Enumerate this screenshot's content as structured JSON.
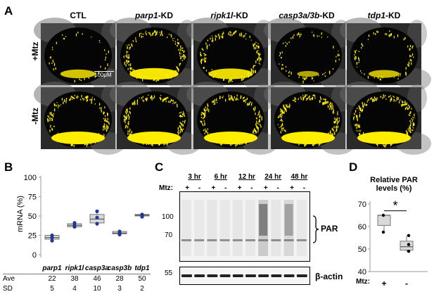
{
  "panel_a": {
    "letter": "A",
    "columns": [
      {
        "gene": "CTL",
        "suffix": "",
        "italic": false
      },
      {
        "gene": "parp1",
        "suffix": "-KD",
        "italic": true
      },
      {
        "gene": "ripk1l",
        "suffix": "-KD",
        "italic": true
      },
      {
        "gene": "casp3a/3b",
        "suffix": "-KD",
        "italic": true
      },
      {
        "gene": "tdp1",
        "suffix": "-KD",
        "italic": true
      }
    ],
    "rows": [
      "+Mtz",
      "-Mtz"
    ],
    "scale_bar": "100μM",
    "colors": {
      "signal": "#ffee00",
      "background": "#050505",
      "tissue": "#6a6a6a"
    }
  },
  "panel_b": {
    "letter": "B",
    "ylabel": "mRNA (%)",
    "yticks": [
      "100",
      "75",
      "50",
      "25",
      "0"
    ],
    "table": {
      "genes": [
        "parp1",
        "ripk1l",
        "casp3a",
        "casp3b",
        "tdp1"
      ],
      "ave_label": "Ave",
      "sd_label": "SD",
      "ave": [
        "22",
        "38",
        "46",
        "28",
        "50"
      ],
      "sd": [
        "5",
        "4",
        "10",
        "3",
        "2"
      ]
    },
    "chart_data": {
      "type": "box",
      "categories": [
        "parp1",
        "ripk1l",
        "casp3a",
        "casp3b",
        "tdp1"
      ],
      "ylim": [
        0,
        100
      ],
      "ylabel": "mRNA (%)",
      "boxes": [
        {
          "q1": 20,
          "median": 22,
          "q3": 25,
          "min": 18,
          "max": 26,
          "points": [
            18,
            22,
            25
          ]
        },
        {
          "q1": 36,
          "median": 38,
          "q3": 40,
          "min": 35,
          "max": 42,
          "points": [
            36,
            38,
            41
          ]
        },
        {
          "q1": 41,
          "median": 46,
          "q3": 52,
          "min": 37,
          "max": 57,
          "points": [
            40,
            48,
            56
          ]
        },
        {
          "q1": 27,
          "median": 28,
          "q3": 30,
          "min": 26,
          "max": 31,
          "points": [
            26,
            28,
            30
          ]
        },
        {
          "q1": 50,
          "median": 51,
          "q3": 52,
          "min": 48,
          "max": 53,
          "points": [
            49,
            51,
            52
          ]
        }
      ],
      "colors": {
        "box": "#d9d9d9",
        "points": "#1f3a93"
      }
    }
  },
  "panel_c": {
    "letter": "C",
    "mtz_label": "Mtz:",
    "timepoints": [
      "3 hr",
      "6 hr",
      "12 hr",
      "24 hr",
      "48 hr"
    ],
    "signs": [
      "+",
      "-"
    ],
    "markers": [
      "100",
      "70",
      "55"
    ],
    "par_label": "PAR",
    "actin_label": "β-actin"
  },
  "panel_d": {
    "letter": "D",
    "title_line1": "Relative PAR",
    "title_line2": "levels (%)",
    "yticks": [
      "70",
      "60",
      "50",
      "40"
    ],
    "mtz_label": "Mtz:",
    "xlabels": [
      "+",
      "-"
    ],
    "significance": "*",
    "chart_data": {
      "type": "box",
      "categories": [
        "+",
        "-"
      ],
      "ylim": [
        40,
        70
      ],
      "boxes": [
        {
          "q1": 60.5,
          "median": 65,
          "q3": 65,
          "min": 57.5,
          "max": 65,
          "points": [
            65,
            57.5
          ]
        },
        {
          "q1": 49.5,
          "median": 51,
          "q3": 53.5,
          "min": 49,
          "max": 56,
          "points": [
            56,
            52,
            49
          ]
        }
      ],
      "colors": {
        "box": "#d9d9d9",
        "points": "#000000"
      }
    }
  }
}
